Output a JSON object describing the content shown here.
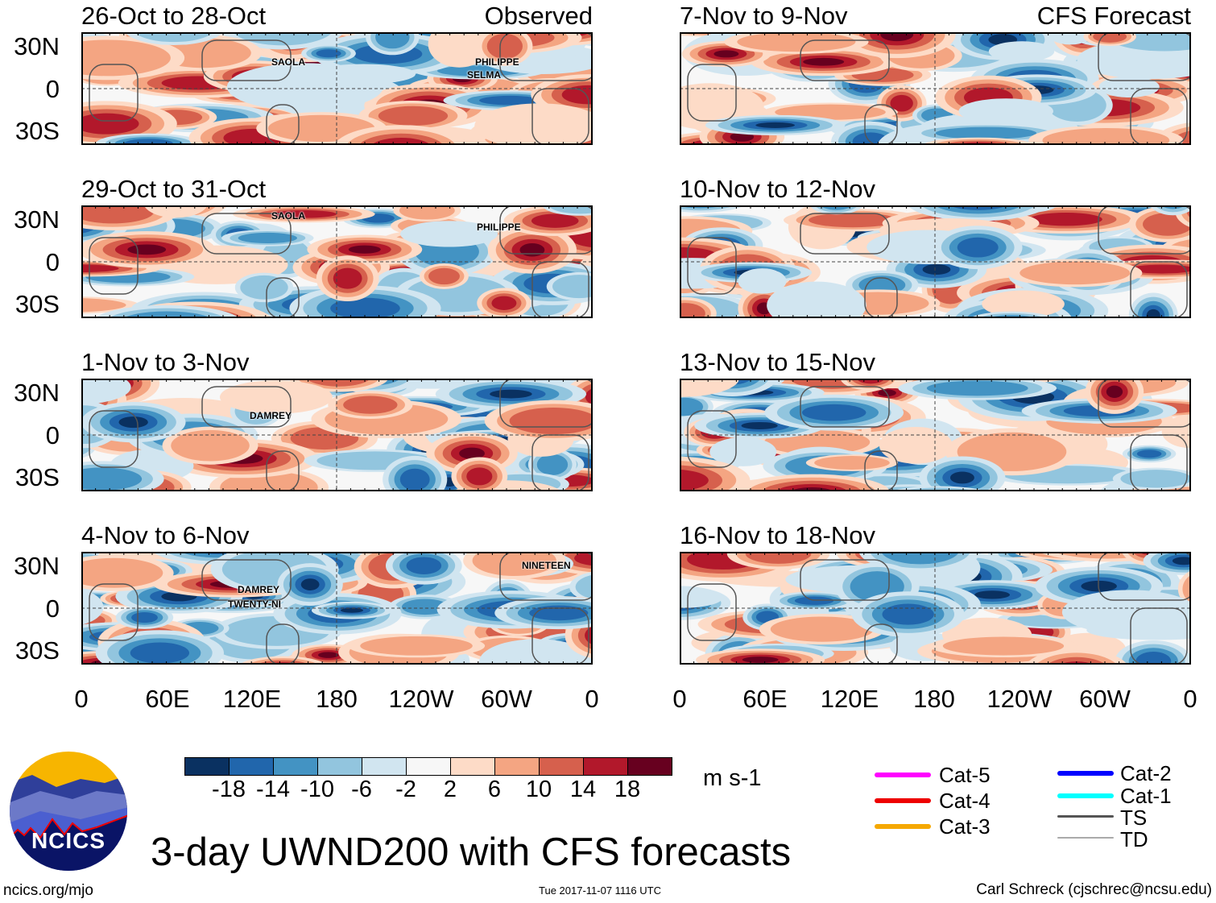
{
  "panels": [
    {
      "title": "26-Oct to 28-Oct",
      "subtitle": "Observed",
      "storms": [
        "SAOLA",
        "PHILIPPE",
        "SELMA"
      ]
    },
    {
      "title": "29-Oct to 31-Oct",
      "storms": [
        "SAOLA",
        "PHILIPPE"
      ]
    },
    {
      "title": "1-Nov to 3-Nov",
      "storms": [
        "DAMREY"
      ]
    },
    {
      "title": "4-Nov to 6-Nov",
      "storms": [
        "DAMREY",
        "TWENTY-NI",
        "NINETEEN"
      ]
    },
    {
      "title": "7-Nov to 9-Nov",
      "subtitle": "CFS Forecast",
      "storms": []
    },
    {
      "title": "10-Nov to 12-Nov",
      "storms": []
    },
    {
      "title": "13-Nov to 15-Nov",
      "storms": []
    },
    {
      "title": "16-Nov to 18-Nov",
      "storms": []
    }
  ],
  "y_ticks": [
    "30N",
    "0",
    "30S"
  ],
  "x_ticks": [
    "0",
    "60E",
    "120E",
    "180",
    "120W",
    "60W",
    "0"
  ],
  "colorbar": {
    "labels": [
      "-18",
      "-14",
      "-10",
      "-6",
      "-2",
      "2",
      "6",
      "10",
      "14",
      "18"
    ],
    "colors": [
      "#0a3161",
      "#2166ac",
      "#4393c3",
      "#92c5de",
      "#d1e5f0",
      "#f7f7f7",
      "#fddbc7",
      "#f4a582",
      "#d6604d",
      "#b2182b",
      "#67001f"
    ],
    "units": "m s-1"
  },
  "legend": [
    {
      "label": "Cat-5",
      "color": "#ff00ff"
    },
    {
      "label": "Cat-4",
      "color": "#ee0000"
    },
    {
      "label": "Cat-3",
      "color": "#f5a800"
    },
    {
      "label": "Cat-2",
      "color": "#0000ff"
    },
    {
      "label": "Cat-1",
      "color": "#00ffff"
    },
    {
      "label": "TS",
      "color": "#555555"
    },
    {
      "label": "TD",
      "color": "#aaaaaa"
    }
  ],
  "logo_text": "NCICS",
  "main_title": "3-day UWND200 with CFS forecasts",
  "url": "ncics.org/mjo",
  "timestamp": "Tue 2017-11-07 1116 UTC",
  "credit": "Carl Schreck (cjschrec@ncsu.edu)"
}
